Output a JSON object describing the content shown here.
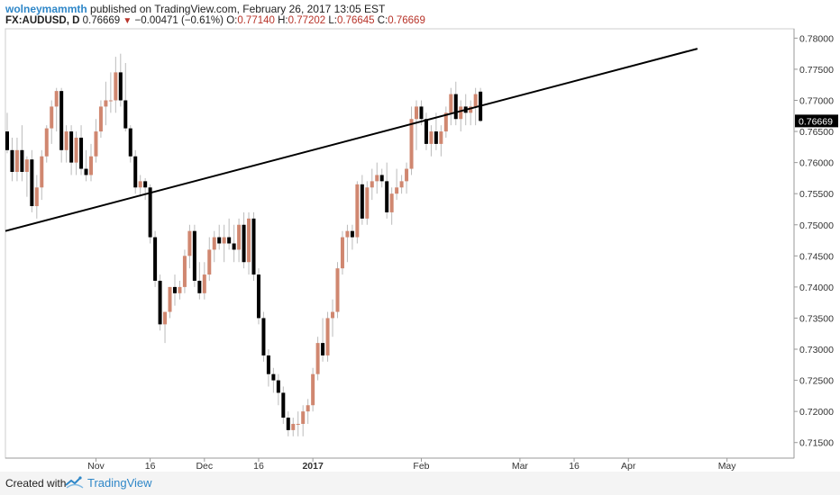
{
  "header": {
    "author": "wolneymammth",
    "published": "published on TradingView.com, February 26, 2017 13:05 EST",
    "symbol": "FX:AUDUSD, D",
    "last": "0.76669",
    "change": "−0.00471 (−0.61%)",
    "o_label": "O:",
    "o_value": "0.77140",
    "h_label": "H:",
    "h_value": "0.77202",
    "l_label": "L:",
    "l_value": "0.76645",
    "c_label": "C:",
    "c_value": "0.76669"
  },
  "footer": {
    "created_with": "Created with",
    "brand": "TradingView"
  },
  "colors": {
    "up": "#d08770",
    "down": "#000000",
    "wick": "#bbbbbb",
    "trendline": "#000000",
    "price_tag_bg": "#000000"
  },
  "chart_data": {
    "type": "candlestick",
    "symbol": "FX:AUDUSD",
    "interval": "D",
    "y_axis": {
      "min": 0.7125,
      "max": 0.7815,
      "ticks": [
        "0.71500",
        "0.72000",
        "0.72500",
        "0.73000",
        "0.73500",
        "0.74000",
        "0.74500",
        "0.75000",
        "0.75500",
        "0.76000",
        "0.76500",
        "0.77000",
        "0.77500",
        "0.78000"
      ],
      "current_price": "0.76669"
    },
    "x_axis": {
      "labels": [
        {
          "label": "Nov",
          "index": 18
        },
        {
          "label": "16",
          "index": 29
        },
        {
          "label": "Dec",
          "index": 40
        },
        {
          "label": "16",
          "index": 51
        },
        {
          "label": "2017",
          "index": 62
        },
        {
          "label": "Feb",
          "index": 84
        },
        {
          "label": "Mar",
          "index": 104
        },
        {
          "label": "16",
          "index": 115
        },
        {
          "label": "Apr",
          "index": 126
        },
        {
          "label": "May",
          "index": 146
        }
      ]
    },
    "candles": [
      [
        0.765,
        0.768,
        0.7615,
        0.762
      ],
      [
        0.762,
        0.764,
        0.757,
        0.7585
      ],
      [
        0.7585,
        0.764,
        0.757,
        0.762
      ],
      [
        0.762,
        0.766,
        0.757,
        0.7585
      ],
      [
        0.7585,
        0.761,
        0.7545,
        0.7605
      ],
      [
        0.7605,
        0.762,
        0.752,
        0.753
      ],
      [
        0.753,
        0.758,
        0.751,
        0.756
      ],
      [
        0.756,
        0.762,
        0.754,
        0.761
      ],
      [
        0.761,
        0.766,
        0.76,
        0.7655
      ],
      [
        0.7655,
        0.77,
        0.763,
        0.769
      ],
      [
        0.769,
        0.772,
        0.765,
        0.7715
      ],
      [
        0.7715,
        0.772,
        0.76,
        0.762
      ],
      [
        0.762,
        0.766,
        0.76,
        0.765
      ],
      [
        0.765,
        0.766,
        0.758,
        0.76
      ],
      [
        0.76,
        0.765,
        0.758,
        0.764
      ],
      [
        0.764,
        0.766,
        0.758,
        0.759
      ],
      [
        0.759,
        0.762,
        0.757,
        0.758
      ],
      [
        0.758,
        0.763,
        0.757,
        0.761
      ],
      [
        0.761,
        0.767,
        0.76,
        0.765
      ],
      [
        0.765,
        0.77,
        0.764,
        0.769
      ],
      [
        0.769,
        0.773,
        0.766,
        0.77
      ],
      [
        0.77,
        0.7745,
        0.768,
        0.77
      ],
      [
        0.77,
        0.777,
        0.768,
        0.7745
      ],
      [
        0.7745,
        0.7775,
        0.769,
        0.77
      ],
      [
        0.77,
        0.776,
        0.765,
        0.7655
      ],
      [
        0.7655,
        0.766,
        0.76,
        0.761
      ],
      [
        0.761,
        0.762,
        0.755,
        0.756
      ],
      [
        0.756,
        0.758,
        0.7545,
        0.757
      ],
      [
        0.757,
        0.7575,
        0.754,
        0.756
      ],
      [
        0.756,
        0.7565,
        0.747,
        0.748
      ],
      [
        0.748,
        0.749,
        0.74,
        0.741
      ],
      [
        0.741,
        0.742,
        0.733,
        0.734
      ],
      [
        0.734,
        0.736,
        0.731,
        0.736
      ],
      [
        0.736,
        0.74,
        0.735,
        0.74
      ],
      [
        0.74,
        0.742,
        0.737,
        0.739
      ],
      [
        0.739,
        0.741,
        0.738,
        0.74
      ],
      [
        0.74,
        0.746,
        0.739,
        0.745
      ],
      [
        0.745,
        0.75,
        0.743,
        0.749
      ],
      [
        0.749,
        0.75,
        0.74,
        0.741
      ],
      [
        0.741,
        0.744,
        0.738,
        0.739
      ],
      [
        0.739,
        0.744,
        0.738,
        0.742
      ],
      [
        0.742,
        0.748,
        0.741,
        0.746
      ],
      [
        0.746,
        0.749,
        0.744,
        0.748
      ],
      [
        0.748,
        0.75,
        0.746,
        0.747
      ],
      [
        0.747,
        0.75,
        0.744,
        0.748
      ],
      [
        0.748,
        0.751,
        0.746,
        0.747
      ],
      [
        0.747,
        0.75,
        0.744,
        0.746
      ],
      [
        0.746,
        0.751,
        0.744,
        0.75
      ],
      [
        0.75,
        0.752,
        0.743,
        0.744
      ],
      [
        0.744,
        0.752,
        0.742,
        0.751
      ],
      [
        0.751,
        0.752,
        0.741,
        0.742
      ],
      [
        0.742,
        0.743,
        0.734,
        0.735
      ],
      [
        0.735,
        0.736,
        0.728,
        0.729
      ],
      [
        0.729,
        0.73,
        0.724,
        0.726
      ],
      [
        0.726,
        0.727,
        0.723,
        0.725
      ],
      [
        0.725,
        0.726,
        0.721,
        0.723
      ],
      [
        0.723,
        0.724,
        0.718,
        0.719
      ],
      [
        0.719,
        0.72,
        0.716,
        0.717
      ],
      [
        0.717,
        0.719,
        0.716,
        0.718
      ],
      [
        0.718,
        0.72,
        0.716,
        0.718
      ],
      [
        0.718,
        0.721,
        0.716,
        0.72
      ],
      [
        0.72,
        0.722,
        0.718,
        0.721
      ],
      [
        0.721,
        0.727,
        0.72,
        0.726
      ],
      [
        0.726,
        0.732,
        0.725,
        0.731
      ],
      [
        0.731,
        0.735,
        0.728,
        0.729
      ],
      [
        0.729,
        0.736,
        0.728,
        0.735
      ],
      [
        0.735,
        0.738,
        0.732,
        0.736
      ],
      [
        0.736,
        0.744,
        0.735,
        0.743
      ],
      [
        0.743,
        0.749,
        0.742,
        0.748
      ],
      [
        0.748,
        0.75,
        0.744,
        0.749
      ],
      [
        0.749,
        0.75,
        0.746,
        0.748
      ],
      [
        0.748,
        0.757,
        0.747,
        0.7565
      ],
      [
        0.7565,
        0.758,
        0.75,
        0.751
      ],
      [
        0.751,
        0.757,
        0.75,
        0.756
      ],
      [
        0.756,
        0.759,
        0.754,
        0.757
      ],
      [
        0.757,
        0.76,
        0.755,
        0.758
      ],
      [
        0.758,
        0.759,
        0.756,
        0.757
      ],
      [
        0.757,
        0.76,
        0.751,
        0.752
      ],
      [
        0.752,
        0.756,
        0.75,
        0.755
      ],
      [
        0.755,
        0.759,
        0.754,
        0.756
      ],
      [
        0.756,
        0.758,
        0.755,
        0.757
      ],
      [
        0.757,
        0.76,
        0.755,
        0.759
      ],
      [
        0.759,
        0.769,
        0.758,
        0.767
      ],
      [
        0.767,
        0.77,
        0.762,
        0.769
      ],
      [
        0.769,
        0.77,
        0.766,
        0.767
      ],
      [
        0.767,
        0.768,
        0.762,
        0.763
      ],
      [
        0.763,
        0.766,
        0.761,
        0.765
      ],
      [
        0.765,
        0.768,
        0.762,
        0.763
      ],
      [
        0.763,
        0.766,
        0.761,
        0.765
      ],
      [
        0.765,
        0.769,
        0.764,
        0.768
      ],
      [
        0.768,
        0.772,
        0.766,
        0.771
      ],
      [
        0.771,
        0.773,
        0.766,
        0.767
      ],
      [
        0.767,
        0.77,
        0.765,
        0.769
      ],
      [
        0.769,
        0.771,
        0.766,
        0.768
      ],
      [
        0.768,
        0.77,
        0.766,
        0.769
      ],
      [
        0.769,
        0.772,
        0.766,
        0.771
      ],
      [
        0.7714,
        0.772,
        0.7665,
        0.7667
      ]
    ],
    "trendline": {
      "from": {
        "index": -1.3,
        "price": 0.749
      },
      "to": {
        "index": 140,
        "price": 0.7783
      }
    },
    "grid": false
  }
}
